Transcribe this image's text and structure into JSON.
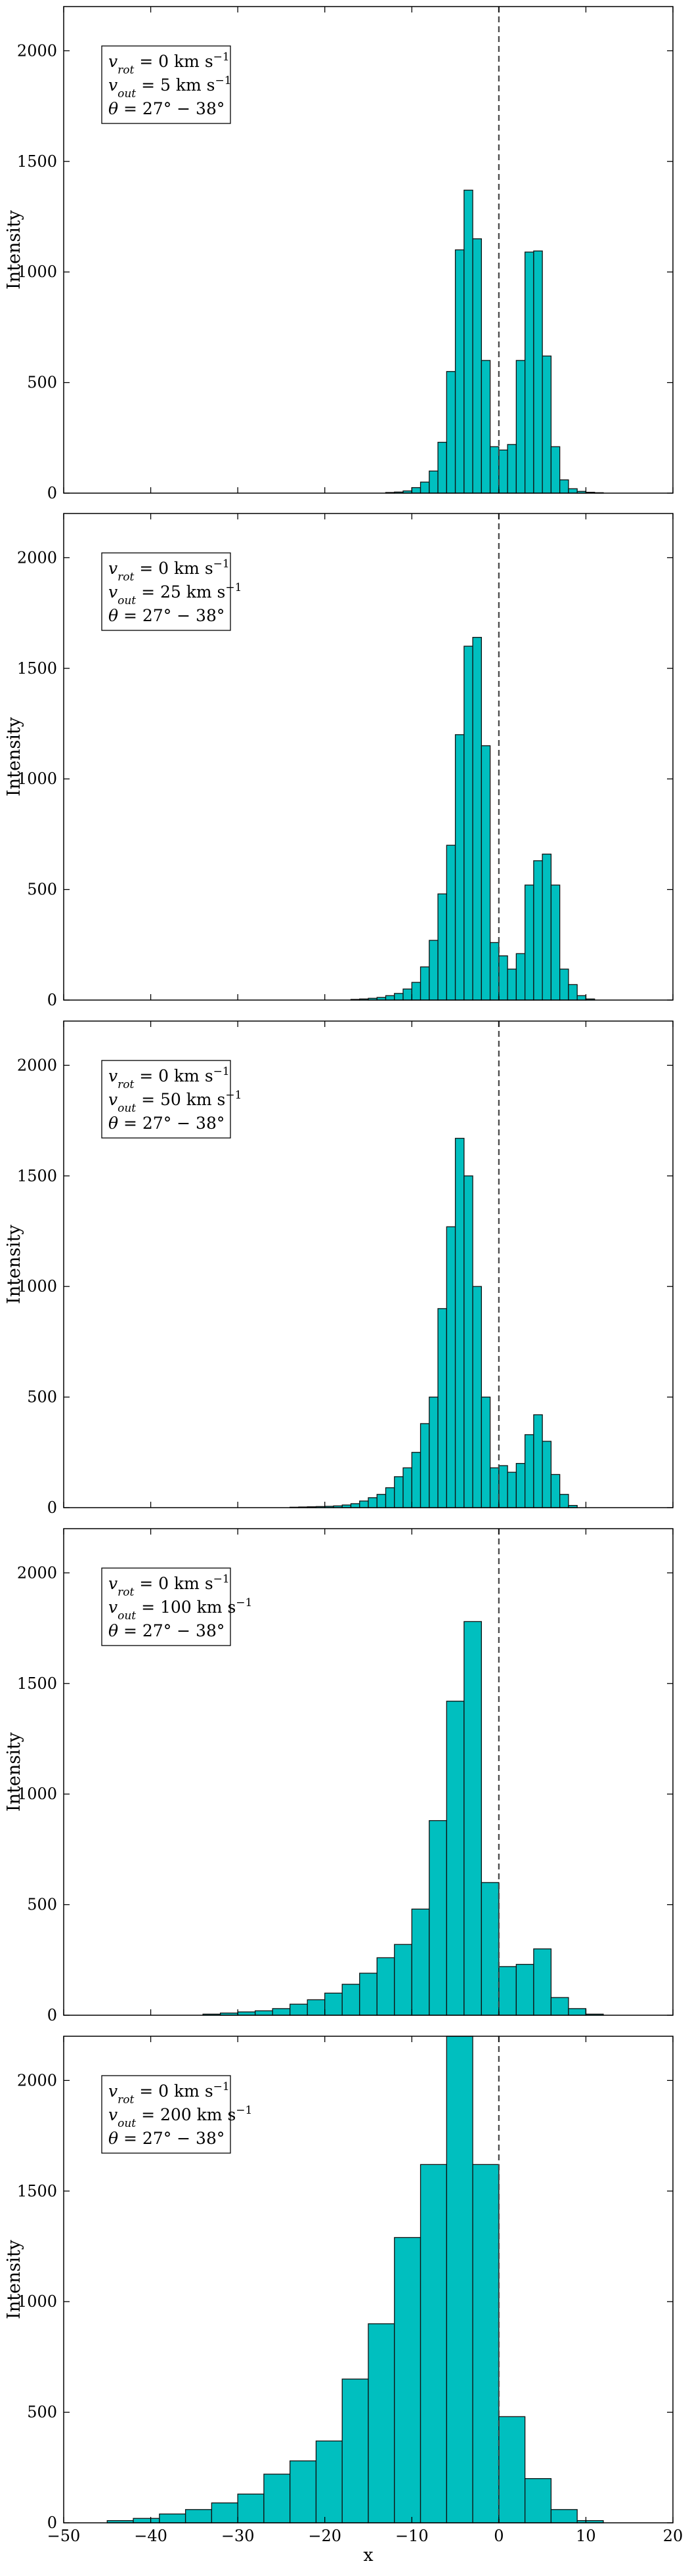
{
  "chart_data": [
    {
      "type": "histogram",
      "ylabel": "Intensity",
      "xlim": [
        -50,
        20
      ],
      "ylim": [
        0,
        2200
      ],
      "reference_line_x": 0,
      "legend": [
        "v_rot = 0 km s^-1",
        "v_out = 5 km s^-1",
        "θ = 27° − 38°"
      ],
      "legend_html": [
        "<tspan font-style=\"italic\">v</tspan><tspan baseline-shift=\"sub\" font-size=\"17\" font-style=\"italic\">rot</tspan> = 0 km s<tspan baseline-shift=\"super\" font-size=\"17\">−1</tspan>",
        "<tspan font-style=\"italic\">v</tspan><tspan baseline-shift=\"sub\" font-size=\"17\" font-style=\"italic\">out</tspan> = 5 km s<tspan baseline-shift=\"super\" font-size=\"17\">−1</tspan>",
        "<tspan font-style=\"italic\">θ</tspan> = 27° − 38°"
      ],
      "bin_edges": [
        -13,
        -12,
        -11,
        -10,
        -9,
        -8,
        -7,
        -6,
        -5,
        -4,
        -3,
        -2,
        -1,
        0,
        1,
        2,
        3,
        4,
        5,
        6,
        7,
        8,
        9,
        10,
        11,
        12
      ],
      "counts": [
        3,
        5,
        10,
        25,
        50,
        100,
        230,
        550,
        1100,
        1370,
        1150,
        600,
        210,
        195,
        220,
        600,
        1090,
        1095,
        620,
        210,
        60,
        20,
        8,
        4,
        2
      ]
    },
    {
      "type": "histogram",
      "ylabel": "Intensity",
      "xlim": [
        -50,
        20
      ],
      "ylim": [
        0,
        2200
      ],
      "reference_line_x": 0,
      "legend": [
        "v_rot = 0 km s^-1",
        "v_out = 25 km s^-1",
        "θ = 27° − 38°"
      ],
      "legend_html": [
        "<tspan font-style=\"italic\">v</tspan><tspan baseline-shift=\"sub\" font-size=\"17\" font-style=\"italic\">rot</tspan> = 0 km s<tspan baseline-shift=\"super\" font-size=\"17\">−1</tspan>",
        "<tspan font-style=\"italic\">v</tspan><tspan baseline-shift=\"sub\" font-size=\"17\" font-style=\"italic\">out</tspan> = 25 km s<tspan baseline-shift=\"super\" font-size=\"17\">−1</tspan>",
        "<tspan font-style=\"italic\">θ</tspan> = 27° − 38°"
      ],
      "bin_edges": [
        -17,
        -16,
        -15,
        -14,
        -13,
        -12,
        -11,
        -10,
        -9,
        -8,
        -7,
        -6,
        -5,
        -4,
        -3,
        -2,
        -1,
        0,
        1,
        2,
        3,
        4,
        5,
        6,
        7,
        8,
        9,
        10,
        11
      ],
      "counts": [
        3,
        5,
        8,
        12,
        20,
        30,
        50,
        80,
        150,
        270,
        480,
        700,
        1200,
        1600,
        1640,
        1150,
        260,
        200,
        140,
        210,
        520,
        630,
        660,
        520,
        140,
        70,
        20,
        5
      ]
    },
    {
      "type": "histogram",
      "ylabel": "Intensity",
      "xlim": [
        -50,
        20
      ],
      "ylim": [
        0,
        2200
      ],
      "reference_line_x": 0,
      "legend": [
        "v_rot = 0 km s^-1",
        "v_out = 50 km s^-1",
        "θ = 27° − 38°"
      ],
      "legend_html": [
        "<tspan font-style=\"italic\">v</tspan><tspan baseline-shift=\"sub\" font-size=\"17\" font-style=\"italic\">rot</tspan> = 0 km s<tspan baseline-shift=\"super\" font-size=\"17\">−1</tspan>",
        "<tspan font-style=\"italic\">v</tspan><tspan baseline-shift=\"sub\" font-size=\"17\" font-style=\"italic\">out</tspan> = 50 km s<tspan baseline-shift=\"super\" font-size=\"17\">−1</tspan>",
        "<tspan font-style=\"italic\">θ</tspan> = 27° − 38°"
      ],
      "bin_edges": [
        -24,
        -23,
        -22,
        -21,
        -20,
        -19,
        -18,
        -17,
        -16,
        -15,
        -14,
        -13,
        -12,
        -11,
        -10,
        -9,
        -8,
        -7,
        -6,
        -5,
        -4,
        -3,
        -2,
        -1,
        0,
        1,
        2,
        3,
        4,
        5,
        6,
        7,
        8,
        9
      ],
      "counts": [
        2,
        3,
        4,
        5,
        6,
        8,
        12,
        18,
        30,
        45,
        60,
        90,
        140,
        180,
        250,
        380,
        500,
        900,
        1270,
        1670,
        1500,
        1000,
        500,
        180,
        190,
        160,
        200,
        330,
        420,
        300,
        150,
        60,
        10
      ]
    },
    {
      "type": "histogram",
      "ylabel": "Intensity",
      "xlim": [
        -50,
        20
      ],
      "ylim": [
        0,
        2200
      ],
      "reference_line_x": 0,
      "legend": [
        "v_rot = 0 km s^-1",
        "v_out = 100 km s^-1",
        "θ = 27° − 38°"
      ],
      "legend_html": [
        "<tspan font-style=\"italic\">v</tspan><tspan baseline-shift=\"sub\" font-size=\"17\" font-style=\"italic\">rot</tspan> = 0 km s<tspan baseline-shift=\"super\" font-size=\"17\">−1</tspan>",
        "<tspan font-style=\"italic\">v</tspan><tspan baseline-shift=\"sub\" font-size=\"17\" font-style=\"italic\">out</tspan> = 100 km s<tspan baseline-shift=\"super\" font-size=\"17\">−1</tspan>",
        "<tspan font-style=\"italic\">θ</tspan> = 27° − 38°"
      ],
      "bin_edges": [
        -34,
        -32,
        -30,
        -28,
        -26,
        -24,
        -22,
        -20,
        -18,
        -16,
        -14,
        -12,
        -10,
        -8,
        -6,
        -4,
        -2,
        0,
        2,
        4,
        6,
        8,
        10,
        12
      ],
      "counts": [
        5,
        10,
        15,
        20,
        30,
        50,
        70,
        100,
        140,
        190,
        260,
        320,
        480,
        880,
        1420,
        1780,
        600,
        220,
        230,
        300,
        80,
        30,
        5
      ]
    },
    {
      "type": "histogram",
      "ylabel": "Intensity",
      "xlabel": "x",
      "xlim": [
        -50,
        20
      ],
      "ylim": [
        0,
        2200
      ],
      "x_ticks": [
        -50,
        -40,
        -30,
        -20,
        -10,
        0,
        10,
        20
      ],
      "reference_line_x": 0,
      "legend": [
        "v_rot = 0 km s^-1",
        "v_out = 200 km s^-1",
        "θ = 27° − 38°"
      ],
      "legend_html": [
        "<tspan font-style=\"italic\">v</tspan><tspan baseline-shift=\"sub\" font-size=\"17\" font-style=\"italic\">rot</tspan> = 0 km s<tspan baseline-shift=\"super\" font-size=\"17\">−1</tspan>",
        "<tspan font-style=\"italic\">v</tspan><tspan baseline-shift=\"sub\" font-size=\"17\" font-style=\"italic\">out</tspan> = 200 km s<tspan baseline-shift=\"super\" font-size=\"17\">−1</tspan>",
        "<tspan font-style=\"italic\">θ</tspan> = 27° − 38°"
      ],
      "bin_edges": [
        -45,
        -42,
        -39,
        -36,
        -33,
        -30,
        -27,
        -24,
        -21,
        -18,
        -15,
        -12,
        -9,
        -6,
        -3,
        0,
        3,
        6,
        9,
        12
      ],
      "counts": [
        10,
        20,
        40,
        60,
        90,
        130,
        220,
        280,
        370,
        650,
        900,
        1290,
        1620,
        2200,
        1620,
        480,
        200,
        60,
        10
      ]
    }
  ],
  "axes": {
    "y_ticks": [
      0,
      500,
      1000,
      1500,
      2000
    ],
    "x_ticks": [
      -50,
      -40,
      -30,
      -20,
      -10,
      0,
      10,
      20
    ]
  },
  "colors": {
    "bar_fill": "#00bfbf",
    "bar_edge": "#111111",
    "ref_line": "#444444"
  }
}
